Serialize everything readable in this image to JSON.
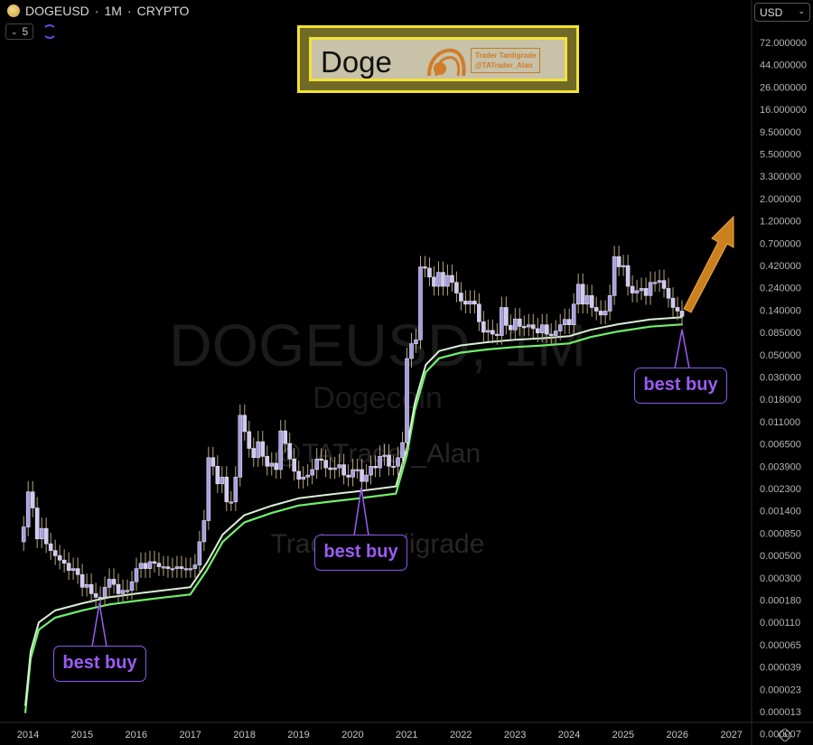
{
  "header": {
    "symbol": "DOGEUSD",
    "interval": "1M",
    "market": "CRYPTO",
    "separator": "·",
    "level": "5"
  },
  "banner": {
    "title": "Doge",
    "author": "Trader Tardigrade",
    "handle": "@TATrader_Alan"
  },
  "currency": "USD",
  "watermark": {
    "symbol": "DOGEUSD, 1M",
    "name": "Dogecoin",
    "handle": "@TATrader_Alan",
    "author": "Trader Tardigrade"
  },
  "annotations": [
    {
      "label": "best buy",
      "date": 2015.3
    },
    {
      "label": "best buy",
      "date": 2020.2
    },
    {
      "label": "best buy",
      "date": 2026.1
    }
  ],
  "colors": {
    "candle": "#a79ee0",
    "wick": "#b8a77c",
    "band_upper": "#d9efd6",
    "band_lower": "#6ff06a",
    "arrow": "#d98a1f",
    "annotation": "#9b5cf5"
  },
  "chart_data": {
    "type": "candlestick",
    "title": "DOGEUSD · 1M · CRYPTO",
    "yscale": "log",
    "ylim": [
      5.5e-06,
      110
    ],
    "xlim": [
      2013.9,
      2027.35
    ],
    "x_ticks": [
      "2014",
      "2015",
      "2016",
      "2017",
      "2018",
      "2019",
      "2020",
      "2021",
      "2022",
      "2023",
      "2024",
      "2025",
      "2026",
      "2027"
    ],
    "y_ticks": [
      "72.000000",
      "44.000000",
      "26.000000",
      "16.000000",
      "9.500000",
      "5.500000",
      "3.300000",
      "2.000000",
      "1.200000",
      "0.700000",
      "0.420000",
      "0.240000",
      "0.140000",
      "0.085000",
      "0.050000",
      "0.030000",
      "0.018000",
      "0.011000",
      "0.006500",
      "0.003900",
      "0.002300",
      "0.001400",
      "0.000850",
      "0.000500",
      "0.000300",
      "0.000180",
      "0.000110",
      "0.000065",
      "0.000039",
      "0.000023",
      "0.000013",
      "0.000007"
    ],
    "start": "2013-12",
    "closes": [
      0.0006,
      0.0014,
      0.00095,
      0.00045,
      0.00058,
      0.0004,
      0.00034,
      0.0003,
      0.00027,
      0.00025,
      0.00021,
      0.00022,
      0.00019,
      0.00014,
      0.00015,
      0.00012,
      0.00011,
      0.00011,
      0.00014,
      0.00017,
      0.00015,
      0.00012,
      0.00013,
      0.00013,
      0.00016,
      0.00022,
      0.00025,
      0.00022,
      0.00026,
      0.00025,
      0.00023,
      0.00023,
      0.00022,
      0.00022,
      0.00023,
      0.00022,
      0.00022,
      0.00022,
      0.00024,
      0.00042,
      0.0007,
      0.0032,
      0.0026,
      0.0017,
      0.002,
      0.0011,
      0.0011,
      0.002,
      0.0089,
      0.006,
      0.004,
      0.0032,
      0.0047,
      0.0033,
      0.0026,
      0.0028,
      0.0024,
      0.0061,
      0.0045,
      0.0031,
      0.0023,
      0.0019,
      0.002,
      0.0021,
      0.0024,
      0.0031,
      0.003,
      0.0025,
      0.0024,
      0.0025,
      0.0027,
      0.0021,
      0.002,
      0.0024,
      0.0024,
      0.0018,
      0.0021,
      0.0026,
      0.0025,
      0.0033,
      0.0034,
      0.0026,
      0.0026,
      0.0032,
      0.0046,
      0.035,
      0.05,
      0.055,
      0.32,
      0.31,
      0.25,
      0.2,
      0.28,
      0.2,
      0.26,
      0.22,
      0.17,
      0.14,
      0.13,
      0.14,
      0.13,
      0.085,
      0.066,
      0.069,
      0.063,
      0.061,
      0.12,
      0.078,
      0.07,
      0.091,
      0.076,
      0.075,
      0.079,
      0.072,
      0.065,
      0.079,
      0.063,
      0.061,
      0.068,
      0.079,
      0.09,
      0.079,
      0.13,
      0.21,
      0.13,
      0.16,
      0.12,
      0.11,
      0.1,
      0.11,
      0.16,
      0.41,
      0.32,
      0.33,
      0.2,
      0.17,
      0.18,
      0.19,
      0.16,
      0.22,
      0.22,
      0.23,
      0.19,
      0.15,
      0.12,
      0.11,
      0.097
    ],
    "band_upper": [
      [
        2013.95,
        8e-06
      ],
      [
        2014.05,
        3e-05
      ],
      [
        2014.2,
        6e-05
      ],
      [
        2014.5,
        8e-05
      ],
      [
        2015,
        9.5e-05
      ],
      [
        2015.5,
        0.00011
      ],
      [
        2016,
        0.00012
      ],
      [
        2016.5,
        0.00013
      ],
      [
        2017,
        0.00014
      ],
      [
        2017.3,
        0.00025
      ],
      [
        2017.6,
        0.0005
      ],
      [
        2018,
        0.0008
      ],
      [
        2018.5,
        0.001
      ],
      [
        2019,
        0.0012
      ],
      [
        2019.5,
        0.0013
      ],
      [
        2020,
        0.0014
      ],
      [
        2020.8,
        0.0016
      ],
      [
        2021.0,
        0.004
      ],
      [
        2021.15,
        0.012
      ],
      [
        2021.35,
        0.03
      ],
      [
        2021.6,
        0.042
      ],
      [
        2022,
        0.048
      ],
      [
        2022.5,
        0.052
      ],
      [
        2023,
        0.055
      ],
      [
        2023.5,
        0.057
      ],
      [
        2024,
        0.06
      ],
      [
        2024.4,
        0.07
      ],
      [
        2024.9,
        0.08
      ],
      [
        2025.5,
        0.09
      ],
      [
        2026.1,
        0.095
      ]
    ],
    "band_lower_ratio": 0.84
  }
}
